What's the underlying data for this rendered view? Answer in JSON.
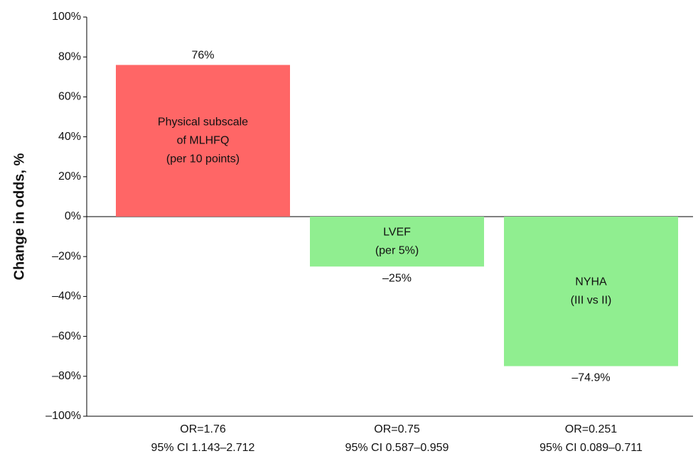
{
  "chart_data": {
    "type": "bar",
    "y_label": "Change in odds, %",
    "categories": [
      [
        "OR=1.76",
        "95% CI 1.143–2.712"
      ],
      [
        "OR=0.75",
        "95% CI 0.587–0.959"
      ],
      [
        "OR=0.251",
        "95% CI 0.089–0.711"
      ]
    ],
    "bar_labels": [
      [
        "Physical subscale",
        "of MLHFQ",
        "(per 10 points)"
      ],
      [
        "LVEF",
        "(per 5%)"
      ],
      [
        "NYHA",
        "(III vs II)"
      ]
    ],
    "values": [
      76,
      -25,
      -74.9
    ],
    "value_labels": [
      "76%",
      "–25%",
      "–74.9%"
    ],
    "colors": [
      "#ff6666",
      "#90ee90",
      "#90ee90"
    ],
    "ylim": [
      -100,
      100
    ],
    "yticks": [
      {
        "value": -100,
        "label": "–100%"
      },
      {
        "value": -80,
        "label": "–80%"
      },
      {
        "value": -60,
        "label": "–60%"
      },
      {
        "value": -40,
        "label": "–40%"
      },
      {
        "value": -20,
        "label": "–20%"
      },
      {
        "value": 0,
        "label": "0%"
      },
      {
        "value": 20,
        "label": "20%"
      },
      {
        "value": 40,
        "label": "40%"
      },
      {
        "value": 60,
        "label": "60%"
      },
      {
        "value": 80,
        "label": "80%"
      },
      {
        "value": 100,
        "label": "100%"
      }
    ]
  }
}
